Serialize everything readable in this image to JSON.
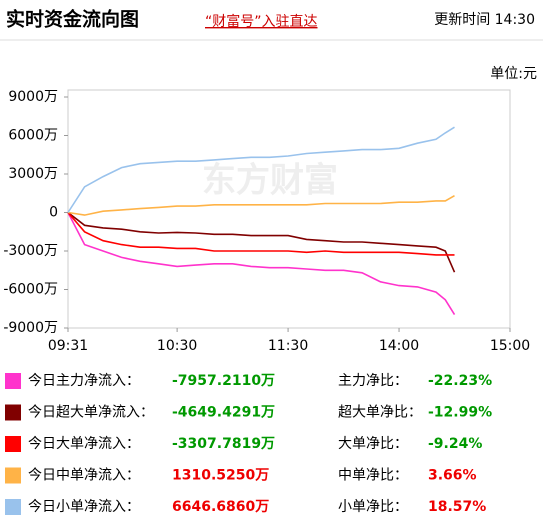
{
  "header": {
    "title": "实时资金流向图",
    "link": "“财富号”入驻直达",
    "update": "更新时间 14:30"
  },
  "chart_data": {
    "type": "line",
    "unit": "单位:元",
    "watermark": "东方财富",
    "x": [
      "09:31",
      "09:40",
      "09:50",
      "10:00",
      "10:10",
      "10:20",
      "10:30",
      "10:40",
      "10:50",
      "11:00",
      "11:10",
      "11:20",
      "11:30",
      "13:10",
      "13:20",
      "13:30",
      "13:40",
      "13:50",
      "14:00",
      "14:10",
      "14:20",
      "14:25",
      "14:30"
    ],
    "xlim": [
      "09:31",
      "15:00"
    ],
    "xticks": [
      "09:31",
      "10:30",
      "11:30",
      "14:00",
      "15:00"
    ],
    "ylim": [
      -9000,
      9000
    ],
    "yticks": [
      {
        "value": 9000,
        "label": "9000万"
      },
      {
        "value": 6000,
        "label": "6000万"
      },
      {
        "value": 3000,
        "label": "3000万"
      },
      0,
      {
        "value": -3000,
        "label": "-3000万"
      },
      {
        "value": -6000,
        "label": "-6000万"
      },
      {
        "value": -9000,
        "label": "-9000万"
      }
    ],
    "series": [
      {
        "name": "今日主力净流入：",
        "color": "#ff33cc",
        "values": [
          0,
          -2500,
          -3000,
          -3500,
          -3800,
          -4000,
          -4200,
          -4100,
          -4000,
          -4000,
          -4200,
          -4300,
          -4300,
          -4400,
          -4500,
          -4500,
          -4700,
          -5400,
          -5700,
          -5800,
          -6200,
          -6800,
          -7957.211
        ]
      },
      {
        "name": "今日超大单净流入：",
        "color": "#800000",
        "values": [
          0,
          -1000,
          -1200,
          -1300,
          -1500,
          -1600,
          -1550,
          -1600,
          -1700,
          -1700,
          -1800,
          -1800,
          -1800,
          -2100,
          -2200,
          -2300,
          -2300,
          -2400,
          -2500,
          -2600,
          -2700,
          -3000,
          -4649.4291
        ]
      },
      {
        "name": "今日大单净流入：",
        "color": "#ff0000",
        "values": [
          0,
          -1500,
          -2200,
          -2500,
          -2700,
          -2700,
          -2800,
          -2800,
          -3000,
          -3000,
          -3000,
          -3000,
          -3000,
          -3100,
          -3000,
          -3100,
          -3100,
          -3100,
          -3100,
          -3200,
          -3300,
          -3300,
          -3307.7819
        ]
      },
      {
        "name": "今日中单净流入：",
        "color": "#ffb347",
        "values": [
          0,
          -200,
          100,
          200,
          300,
          400,
          500,
          500,
          600,
          600,
          600,
          600,
          600,
          600,
          700,
          700,
          700,
          700,
          800,
          800,
          900,
          900,
          1310.525
        ]
      },
      {
        "name": "今日小单净流入：",
        "color": "#99c2ec",
        "values": [
          0,
          2000,
          2800,
          3500,
          3800,
          3900,
          4000,
          4000,
          4100,
          4200,
          4300,
          4300,
          4400,
          4600,
          4700,
          4800,
          4900,
          4900,
          5000,
          5400,
          5700,
          6200,
          6646.686
        ]
      }
    ],
    "summary": [
      {
        "value": "-7957.2110万",
        "ratio_label": "主力净比：",
        "ratio": "-22.23%"
      },
      {
        "value": "-4649.4291万",
        "ratio_label": "超大单净比：",
        "ratio": "-12.99%"
      },
      {
        "value": "-3307.7819万",
        "ratio_label": "大单净比：",
        "ratio": "-9.24%"
      },
      {
        "value": "1310.5250万",
        "ratio_label": "中单净比：",
        "ratio": "3.66%"
      },
      {
        "value": "6646.6860万",
        "ratio_label": "小单净比：",
        "ratio": "18.57%"
      }
    ]
  }
}
